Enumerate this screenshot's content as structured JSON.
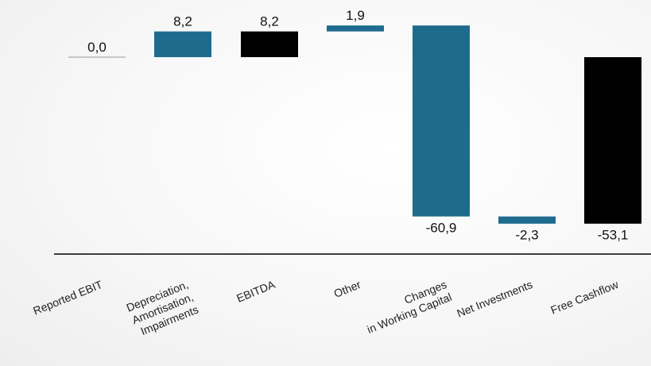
{
  "chart_data": {
    "type": "bar",
    "subtype": "waterfall",
    "categories": [
      [
        "Reported EBIT"
      ],
      [
        "Depreciation,",
        "Amortisation,",
        "Impairments"
      ],
      [
        "EBITDA"
      ],
      [
        "Other"
      ],
      [
        "Changes",
        "in Working Capital"
      ],
      [
        "Net Investments"
      ],
      [
        "Free Cashflow"
      ]
    ],
    "values": [
      0.0,
      8.2,
      8.2,
      1.9,
      -60.9,
      -2.3,
      -53.1
    ],
    "value_labels": [
      "0,0",
      "8,2",
      "8,2",
      "1,9",
      "-60,9",
      "-2,3",
      "-53,1"
    ],
    "bar_kinds": [
      "total",
      "delta",
      "total",
      "delta",
      "delta",
      "delta",
      "total"
    ],
    "colors": {
      "delta": "#1f6b8e",
      "total": "#000000",
      "zero_line": "#999999",
      "axis": "#000000"
    },
    "title": "",
    "xlabel": "",
    "ylabel": "",
    "ylim": [
      -63,
      10
    ]
  }
}
